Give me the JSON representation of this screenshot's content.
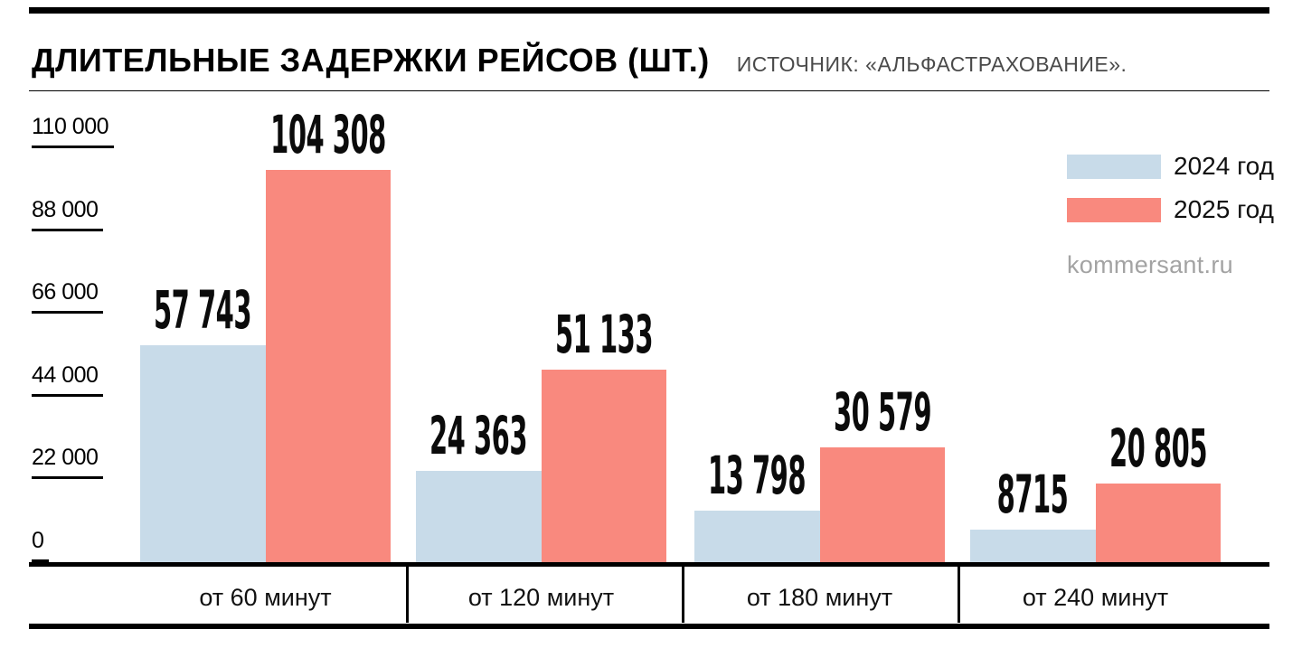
{
  "header": {
    "title": "ДЛИТЕЛЬНЫЕ ЗАДЕРЖКИ РЕЙСОВ (ШТ.)",
    "source": "ИСТОЧНИК: «АЛЬФАСТРАХОВАНИЕ»."
  },
  "watermark": "kommersant.ru",
  "legend": [
    {
      "label": "2024 год",
      "color": "#c8dbe9"
    },
    {
      "label": "2025 год",
      "color": "#f9897e"
    }
  ],
  "chart_data": {
    "type": "bar",
    "title": "ДЛИТЕЛЬНЫЕ ЗАДЕРЖКИ РЕЙСОВ (ШТ.)",
    "source": "ИСТОЧНИК: «АЛЬФАСТРАХОВАНИЕ».",
    "categories": [
      "от 60 минут",
      "от 120 минут",
      "от 180 минут",
      "от 240 минут"
    ],
    "series": [
      {
        "name": "2024 год",
        "color": "#c8dbe9",
        "values": [
          57743,
          24363,
          13798,
          8715
        ],
        "labels": [
          "57 743",
          "24 363",
          "13 798",
          "8715"
        ]
      },
      {
        "name": "2025 год",
        "color": "#f9897e",
        "values": [
          104308,
          51133,
          30579,
          20805
        ],
        "labels": [
          "104 308",
          "51 133",
          "30 579",
          "20 805"
        ]
      }
    ],
    "y_ticks": [
      {
        "value": 0,
        "label": "0"
      },
      {
        "value": 22000,
        "label": "22 000"
      },
      {
        "value": 44000,
        "label": "44 000"
      },
      {
        "value": 66000,
        "label": "66 000"
      },
      {
        "value": 88000,
        "label": "88 000"
      },
      {
        "value": 110000,
        "label": "110 000"
      }
    ],
    "ylim": [
      0,
      110000
    ],
    "xlabel": "",
    "ylabel": "",
    "grid": false,
    "legend_position": "top-right"
  }
}
